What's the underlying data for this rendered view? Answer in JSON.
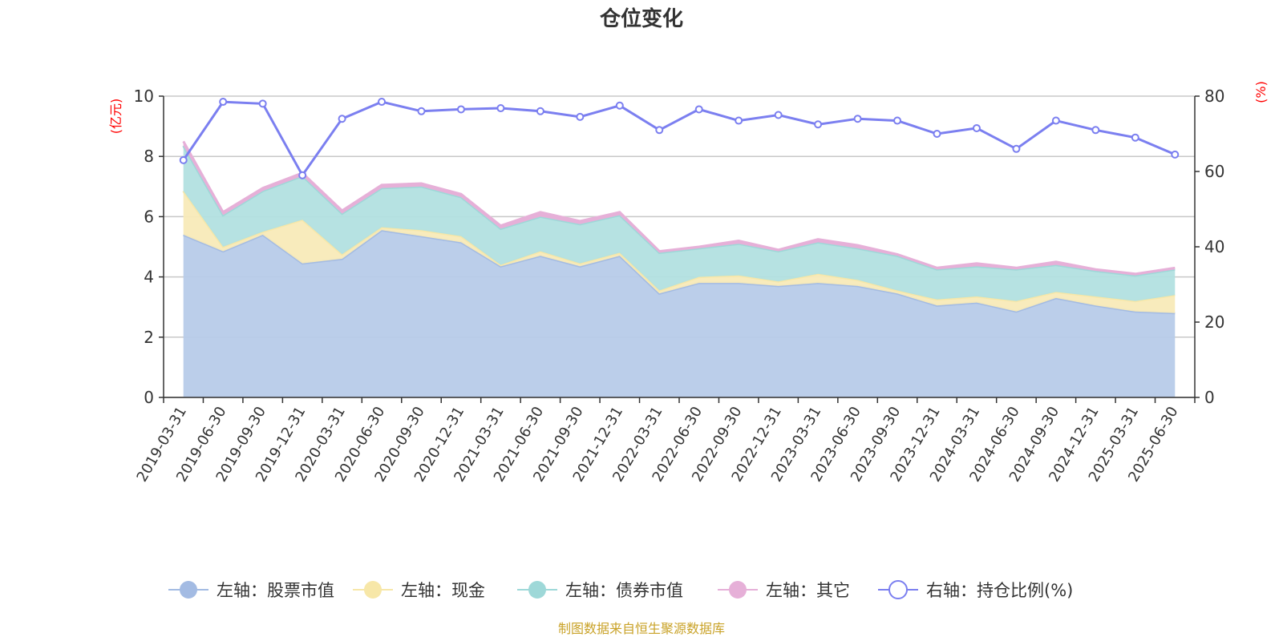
{
  "chart_data": {
    "type": "area",
    "title": "仓位变化",
    "left_axis": {
      "unit": "(亿元)",
      "ylim": [
        0,
        10
      ],
      "ticks": [
        "0",
        "2",
        "4",
        "6",
        "8",
        "10"
      ]
    },
    "right_axis": {
      "unit": "(%)",
      "ylim": [
        0,
        80
      ],
      "ticks": [
        "0",
        "20",
        "40",
        "60",
        "80"
      ]
    },
    "categories": [
      "2019-03-31",
      "2019-06-30",
      "2019-09-30",
      "2019-12-31",
      "2020-03-31",
      "2020-06-30",
      "2020-09-30",
      "2020-12-31",
      "2021-03-31",
      "2021-06-30",
      "2021-09-30",
      "2021-12-31",
      "2022-03-31",
      "2022-06-30",
      "2022-09-30",
      "2022-12-31",
      "2023-03-31",
      "2023-06-30",
      "2023-09-30",
      "2023-12-31",
      "2024-03-31",
      "2024-06-30",
      "2024-09-30",
      "2024-12-31",
      "2025-03-31",
      "2025-06-30"
    ],
    "stacked_series": [
      {
        "name": "左轴：股票市值",
        "color": "#a3bbe3",
        "fill": "#b7cbe9",
        "axis": "left",
        "values": [
          5.4,
          4.85,
          5.4,
          4.45,
          4.6,
          5.55,
          5.35,
          5.15,
          4.35,
          4.7,
          4.35,
          4.7,
          3.45,
          3.8,
          3.8,
          3.7,
          3.8,
          3.7,
          3.45,
          3.05,
          3.15,
          2.85,
          3.3,
          3.05,
          2.85,
          2.8
        ]
      },
      {
        "name": "左轴：现金",
        "color": "#f7e7a8",
        "fill": "#f8eab8",
        "axis": "left",
        "values": [
          1.45,
          0.15,
          0.1,
          1.45,
          0.15,
          0.1,
          0.2,
          0.2,
          0.05,
          0.15,
          0.1,
          0.1,
          0.1,
          0.2,
          0.25,
          0.15,
          0.3,
          0.2,
          0.1,
          0.2,
          0.2,
          0.35,
          0.2,
          0.3,
          0.35,
          0.6
        ]
      },
      {
        "name": "左轴：债券市值",
        "color": "#9ed8d8",
        "fill": "#b2e0e0",
        "axis": "left",
        "values": [
          1.5,
          1.05,
          1.35,
          1.45,
          1.35,
          1.3,
          1.45,
          1.3,
          1.2,
          1.15,
          1.3,
          1.25,
          1.25,
          0.95,
          1.05,
          1.0,
          1.05,
          1.05,
          1.15,
          1.0,
          1.0,
          1.05,
          0.9,
          0.85,
          0.85,
          0.85
        ]
      },
      {
        "name": "左轴：其它",
        "color": "#e6b0d8",
        "fill": "#e6b0d8",
        "axis": "left",
        "values": [
          0.15,
          0.1,
          0.1,
          0.1,
          0.1,
          0.1,
          0.1,
          0.1,
          0.1,
          0.15,
          0.1,
          0.1,
          0.05,
          0.05,
          0.1,
          0.05,
          0.1,
          0.1,
          0.05,
          0.05,
          0.1,
          0.05,
          0.1,
          0.05,
          0.05,
          0.05
        ]
      }
    ],
    "line_series": {
      "name": "右轴：持仓比例(%)",
      "color": "#7b7ff0",
      "axis": "right",
      "values": [
        63.0,
        78.5,
        78.0,
        59.0,
        74.0,
        78.5,
        76.0,
        76.5,
        76.8,
        76.0,
        74.5,
        77.5,
        71.0,
        76.5,
        73.5,
        75.0,
        72.5,
        74.0,
        73.5,
        70.0,
        71.5,
        66.0,
        73.5,
        71.0,
        69.0,
        64.5
      ]
    },
    "grid": true,
    "legend_position": "bottom"
  },
  "footer": {
    "source": "制图数据来自恒生聚源数据库"
  }
}
